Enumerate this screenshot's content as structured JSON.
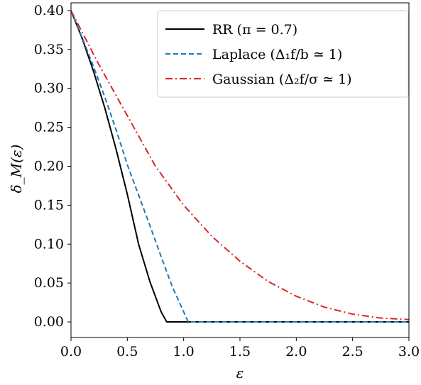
{
  "chart_data": {
    "type": "line",
    "xlabel": "ε",
    "ylabel": "δ_M(ε)",
    "xlim": [
      0.0,
      3.0
    ],
    "ylim": [
      -0.02,
      0.41
    ],
    "xticks": [
      "0.0",
      "0.5",
      "1.0",
      "1.5",
      "2.0",
      "2.5",
      "3.0"
    ],
    "yticks": [
      "0.00",
      "0.05",
      "0.10",
      "0.15",
      "0.20",
      "0.25",
      "0.30",
      "0.35",
      "0.40"
    ],
    "grid": false,
    "legend_position": "top-right",
    "series": [
      {
        "name": "RR (π = 0.7)",
        "color": "#000000",
        "style": "solid",
        "x": [
          0.0,
          0.1,
          0.2,
          0.3,
          0.4,
          0.5,
          0.6,
          0.7,
          0.8,
          0.85,
          1.0,
          1.5,
          2.0,
          2.5,
          3.0
        ],
        "y": [
          0.4,
          0.364,
          0.322,
          0.275,
          0.222,
          0.164,
          0.1,
          0.052,
          0.013,
          0.0,
          0.0,
          0.0,
          0.0,
          0.0,
          0.0
        ]
      },
      {
        "name": "Laplace (Δ₁f/b ≃ 1)",
        "color": "#1f77b4",
        "style": "dashed",
        "x": [
          0.0,
          0.1,
          0.2,
          0.3,
          0.4,
          0.5,
          0.6,
          0.7,
          0.8,
          0.9,
          1.0,
          1.04,
          1.5,
          2.0,
          2.5,
          3.0
        ],
        "y": [
          0.4,
          0.365,
          0.328,
          0.289,
          0.247,
          0.202,
          0.163,
          0.124,
          0.084,
          0.045,
          0.013,
          0.0,
          0.0,
          0.0,
          0.0,
          0.0
        ]
      },
      {
        "name": "Gaussian (Δ₂f/σ ≃ 1)",
        "color": "#d62728",
        "style": "dashdot",
        "x": [
          0.0,
          0.25,
          0.5,
          0.75,
          1.0,
          1.25,
          1.5,
          1.75,
          2.0,
          2.25,
          2.5,
          2.75,
          3.0
        ],
        "y": [
          0.4,
          0.33,
          0.265,
          0.2,
          0.15,
          0.11,
          0.078,
          0.052,
          0.033,
          0.019,
          0.01,
          0.005,
          0.003
        ]
      }
    ],
    "legend": {
      "rr": "RR (π = 0.7)",
      "laplace": "Laplace (Δ₁f/b ≃ 1)",
      "gaussian": "Gaussian (Δ₂f/σ ≃ 1)"
    }
  }
}
